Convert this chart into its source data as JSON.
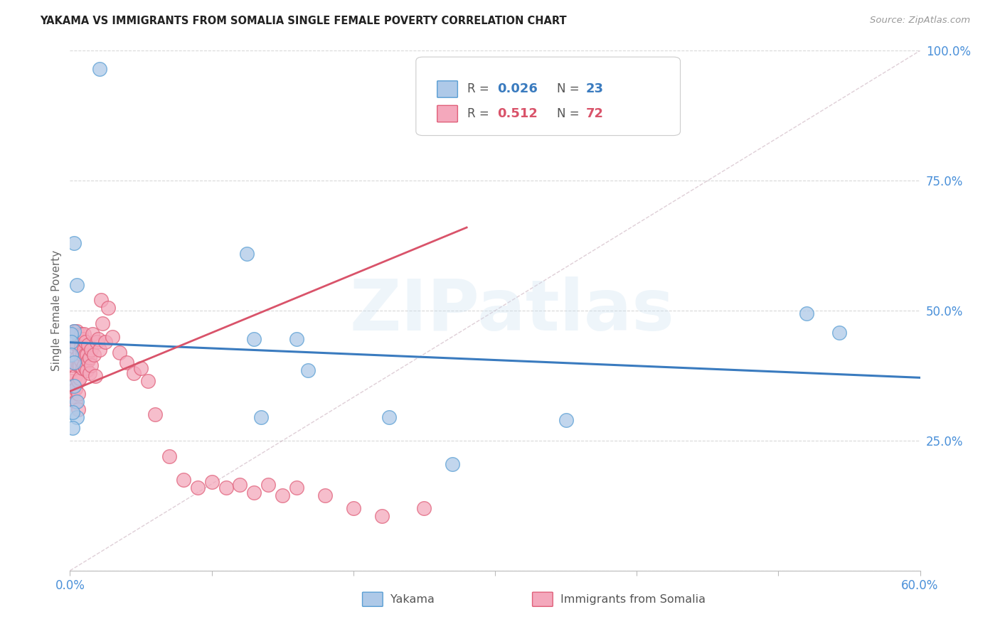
{
  "title": "YAKAMA VS IMMIGRANTS FROM SOMALIA SINGLE FEMALE POVERTY CORRELATION CHART",
  "source": "Source: ZipAtlas.com",
  "ylabel": "Single Female Poverty",
  "xlim": [
    0.0,
    0.6
  ],
  "ylim": [
    0.0,
    1.0
  ],
  "ytick_right": [
    0.0,
    0.25,
    0.5,
    0.75,
    1.0
  ],
  "ytick_right_labels": [
    "",
    "25.0%",
    "50.0%",
    "75.0%",
    "100.0%"
  ],
  "legend_blue_R": "0.026",
  "legend_blue_N": "23",
  "legend_pink_R": "0.512",
  "legend_pink_N": "72",
  "legend_label_blue": "Yakama",
  "legend_label_pink": "Immigrants from Somalia",
  "blue_color": "#aec9e8",
  "pink_color": "#f4a8bc",
  "blue_edge_color": "#5a9fd4",
  "pink_edge_color": "#e0607a",
  "blue_line_color": "#3a7bbf",
  "pink_line_color": "#d9536a",
  "grid_color": "#d8d8d8",
  "watermark": "ZIPatlas",
  "yakama_x": [
    0.021,
    0.003,
    0.005,
    0.003,
    0.001,
    0.001,
    0.001,
    0.003,
    0.003,
    0.125,
    0.13,
    0.135,
    0.16,
    0.168,
    0.225,
    0.27,
    0.35,
    0.52,
    0.543,
    0.005,
    0.005,
    0.002,
    0.002
  ],
  "yakama_y": [
    0.965,
    0.63,
    0.55,
    0.46,
    0.455,
    0.44,
    0.415,
    0.4,
    0.355,
    0.61,
    0.445,
    0.295,
    0.445,
    0.385,
    0.295,
    0.205,
    0.29,
    0.495,
    0.458,
    0.325,
    0.295,
    0.305,
    0.275
  ],
  "somalia_x": [
    0.001,
    0.001,
    0.002,
    0.002,
    0.003,
    0.003,
    0.003,
    0.004,
    0.004,
    0.004,
    0.005,
    0.005,
    0.005,
    0.006,
    0.006,
    0.006,
    0.006,
    0.007,
    0.007,
    0.007,
    0.007,
    0.008,
    0.008,
    0.008,
    0.009,
    0.009,
    0.009,
    0.01,
    0.01,
    0.01,
    0.011,
    0.011,
    0.011,
    0.012,
    0.012,
    0.013,
    0.013,
    0.014,
    0.014,
    0.015,
    0.015,
    0.016,
    0.017,
    0.018,
    0.019,
    0.02,
    0.021,
    0.022,
    0.023,
    0.025,
    0.027,
    0.03,
    0.035,
    0.04,
    0.045,
    0.05,
    0.055,
    0.06,
    0.07,
    0.08,
    0.09,
    0.1,
    0.11,
    0.12,
    0.13,
    0.14,
    0.15,
    0.16,
    0.18,
    0.2,
    0.22,
    0.25
  ],
  "somalia_y": [
    0.365,
    0.335,
    0.395,
    0.345,
    0.46,
    0.43,
    0.395,
    0.375,
    0.35,
    0.325,
    0.46,
    0.435,
    0.41,
    0.395,
    0.365,
    0.34,
    0.31,
    0.445,
    0.42,
    0.395,
    0.37,
    0.455,
    0.43,
    0.405,
    0.445,
    0.415,
    0.39,
    0.455,
    0.425,
    0.395,
    0.44,
    0.415,
    0.39,
    0.415,
    0.385,
    0.435,
    0.405,
    0.41,
    0.38,
    0.425,
    0.395,
    0.455,
    0.415,
    0.375,
    0.44,
    0.445,
    0.425,
    0.52,
    0.475,
    0.44,
    0.505,
    0.45,
    0.42,
    0.4,
    0.38,
    0.39,
    0.365,
    0.3,
    0.22,
    0.175,
    0.16,
    0.17,
    0.16,
    0.165,
    0.15,
    0.165,
    0.145,
    0.16,
    0.145,
    0.12,
    0.105,
    0.12
  ],
  "background_color": "#ffffff",
  "title_fontsize": 10.5,
  "tick_label_color": "#4a90d9"
}
